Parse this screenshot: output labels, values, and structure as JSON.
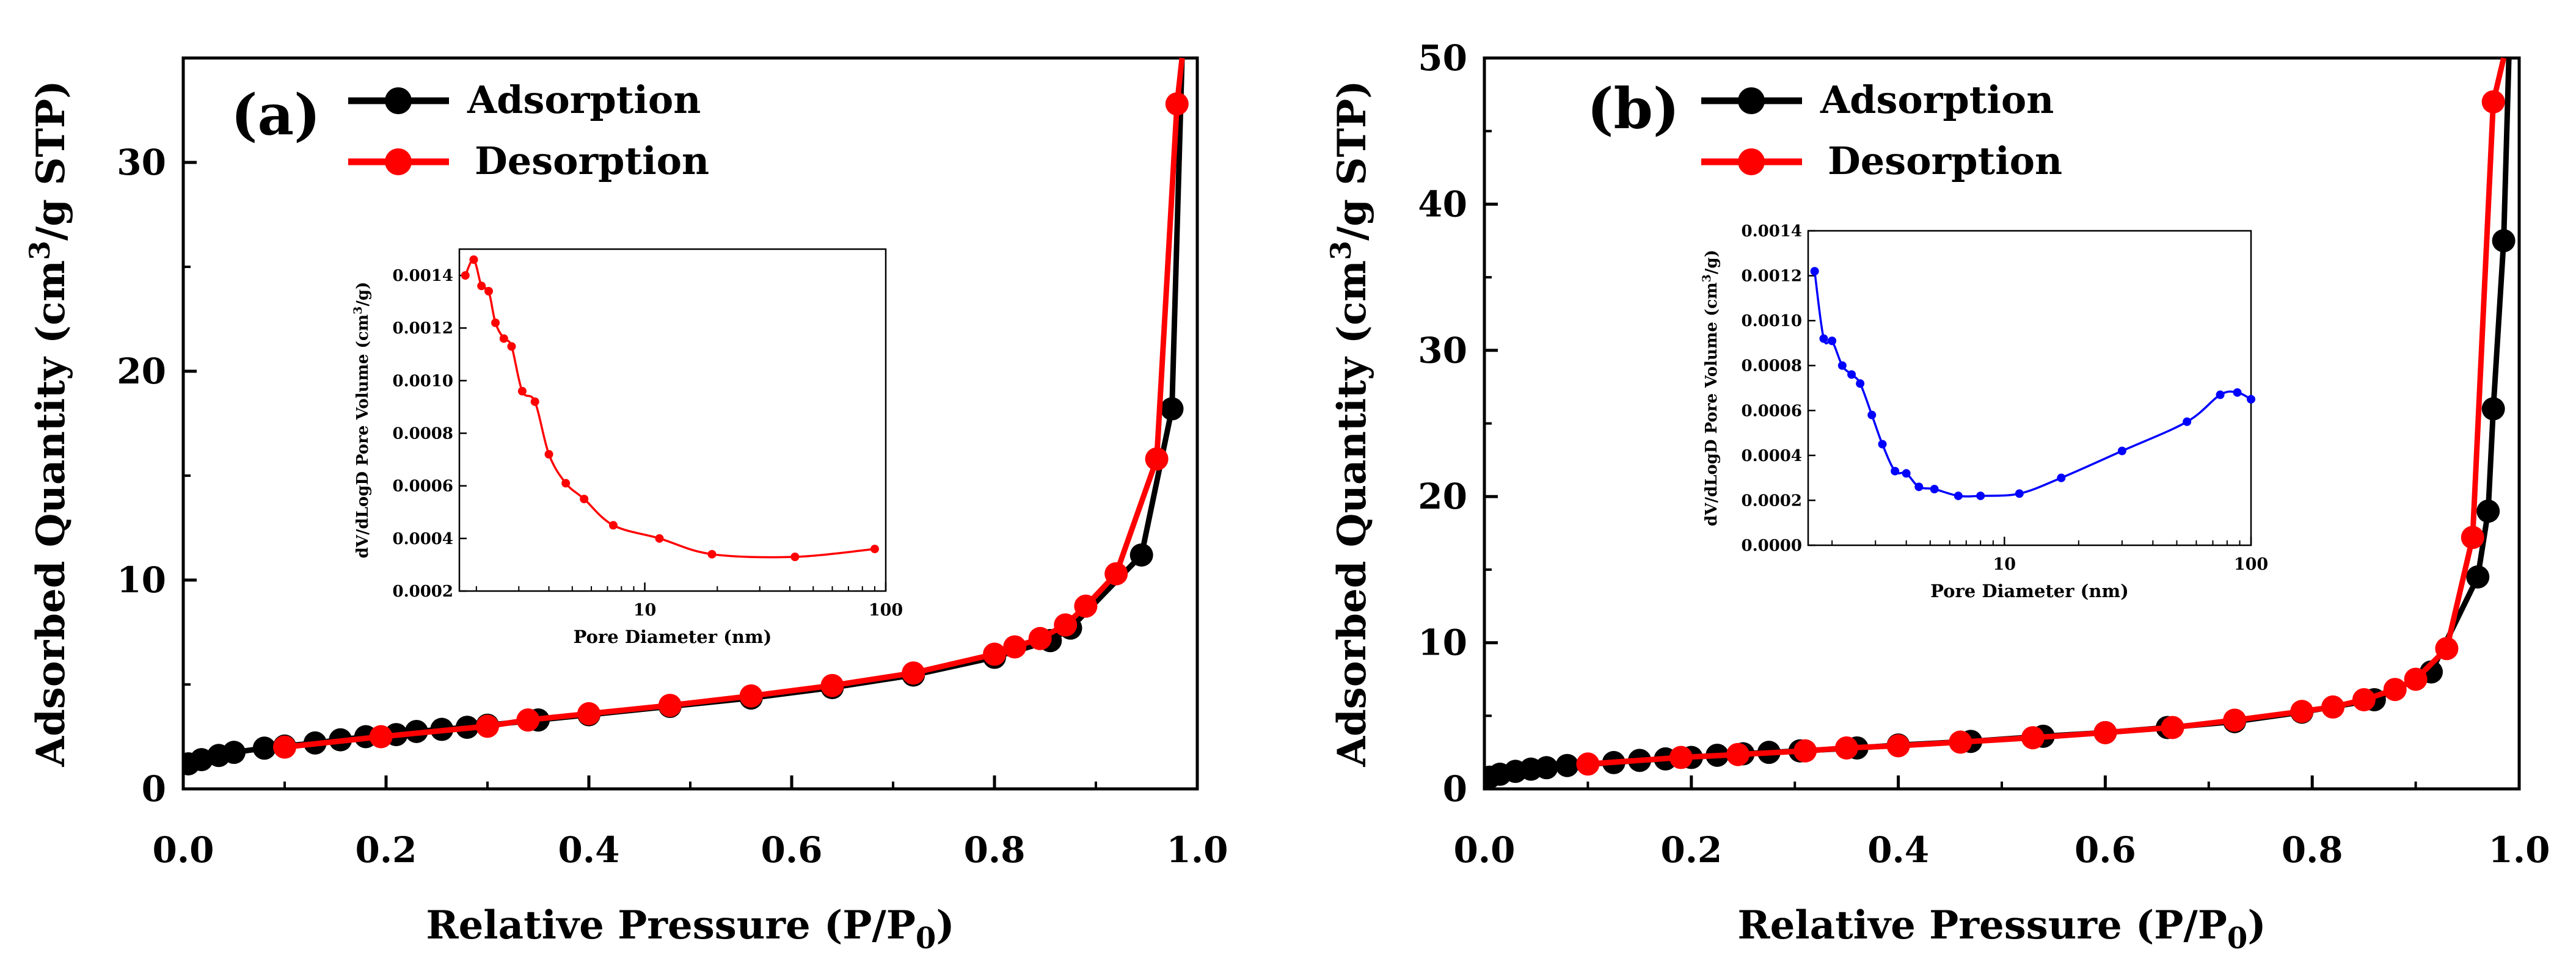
{
  "chart_data": [
    {
      "type": "line",
      "panel_label": "(a)",
      "xlabel": "Relative Pressure (P/P",
      "xlabel_sub": "0",
      "xlabel_end": ")",
      "ylabel": "Adsorbed Quantity (cm",
      "ylabel_sup": "3",
      "ylabel_end": "/g STP)",
      "xlim": [
        0.0,
        1.0
      ],
      "ylim": [
        0,
        35
      ],
      "xticks": [
        "0.0",
        "0.2",
        "0.4",
        "0.6",
        "0.8",
        "1.0"
      ],
      "yticks": [
        "0",
        "10",
        "20",
        "30"
      ],
      "legend": [
        "Adsorption",
        "Desorption"
      ],
      "legend_position": "top-left",
      "series": [
        {
          "name": "Adsorption",
          "color": "#000000",
          "x": [
            0.005,
            0.018,
            0.035,
            0.05,
            0.08,
            0.1,
            0.13,
            0.155,
            0.18,
            0.21,
            0.23,
            0.255,
            0.28,
            0.3,
            0.35,
            0.4,
            0.48,
            0.56,
            0.64,
            0.72,
            0.8,
            0.855,
            0.875,
            0.945,
            0.975,
            0.985
          ],
          "y": [
            1.2,
            1.4,
            1.6,
            1.75,
            1.95,
            2.05,
            2.2,
            2.35,
            2.5,
            2.6,
            2.75,
            2.85,
            2.95,
            3.05,
            3.3,
            3.55,
            3.95,
            4.35,
            4.85,
            5.45,
            6.3,
            7.1,
            7.7,
            11.2,
            18.2,
            35.0
          ]
        },
        {
          "name": "Desorption",
          "color": "#ff0000",
          "x": [
            0.1,
            0.195,
            0.3,
            0.34,
            0.4,
            0.48,
            0.56,
            0.64,
            0.72,
            0.8,
            0.82,
            0.845,
            0.87,
            0.89,
            0.92,
            0.96,
            0.98,
            0.985
          ],
          "y": [
            2.0,
            2.5,
            3.0,
            3.3,
            3.6,
            4.0,
            4.45,
            4.95,
            5.55,
            6.45,
            6.8,
            7.2,
            7.85,
            8.75,
            10.3,
            15.8,
            32.8,
            35.0
          ]
        }
      ],
      "inset": {
        "type": "line",
        "xlabel": "Pore Diameter (nm)",
        "ylabel": "dV/dLogD Pore Volume (cm",
        "ylabel_sup": "3",
        "ylabel_end": "/g)",
        "xscale": "log",
        "xlim": [
          1.7,
          100
        ],
        "ylim": [
          0.0002,
          0.0015
        ],
        "xticks": [
          "10",
          "100"
        ],
        "yticks": [
          "0.0002",
          "0.0004",
          "0.0006",
          "0.0008",
          "0.0010",
          "0.0012",
          "0.0014"
        ],
        "series": [
          {
            "color": "#ff0000",
            "x": [
              1.8,
              1.95,
              2.1,
              2.25,
              2.4,
              2.6,
              2.8,
              3.1,
              3.5,
              4.0,
              4.7,
              5.6,
              7.4,
              11.5,
              19.0,
              42.0,
              90.0
            ],
            "y": [
              0.0014,
              0.00146,
              0.00136,
              0.00134,
              0.00122,
              0.00116,
              0.00113,
              0.00096,
              0.00092,
              0.00072,
              0.00061,
              0.00055,
              0.00045,
              0.0004,
              0.00034,
              0.00033,
              0.00036
            ]
          }
        ]
      }
    },
    {
      "type": "line",
      "panel_label": "(b)",
      "xlabel": "Relative Pressure (P/P",
      "xlabel_sub": "0",
      "xlabel_end": ")",
      "ylabel": "Adsorbed Quantity (cm",
      "ylabel_sup": "3",
      "ylabel_end": "/g STP)",
      "xlim": [
        0.0,
        1.0
      ],
      "ylim": [
        0,
        50
      ],
      "xticks": [
        "0.0",
        "0.2",
        "0.4",
        "0.6",
        "0.8",
        "1.0"
      ],
      "yticks": [
        "0",
        "10",
        "20",
        "30",
        "40",
        "50"
      ],
      "legend": [
        "Adsorption",
        "Desorption"
      ],
      "legend_position": "top-left",
      "series": [
        {
          "name": "Adsorption",
          "color": "#000000",
          "x": [
            0.005,
            0.015,
            0.03,
            0.045,
            0.06,
            0.08,
            0.125,
            0.15,
            0.175,
            0.2,
            0.225,
            0.25,
            0.275,
            0.305,
            0.36,
            0.4,
            0.47,
            0.54,
            0.6,
            0.66,
            0.725,
            0.79,
            0.86,
            0.915,
            0.96,
            0.97,
            0.975,
            0.985,
            0.99
          ],
          "y": [
            0.8,
            1.0,
            1.2,
            1.35,
            1.45,
            1.6,
            1.8,
            1.95,
            2.05,
            2.15,
            2.3,
            2.4,
            2.5,
            2.6,
            2.8,
            3.0,
            3.25,
            3.6,
            3.85,
            4.2,
            4.6,
            5.25,
            6.1,
            8.0,
            14.5,
            19.0,
            26.0,
            37.5,
            50.0
          ]
        },
        {
          "name": "Desorption",
          "color": "#ff0000",
          "x": [
            0.1,
            0.19,
            0.245,
            0.31,
            0.35,
            0.4,
            0.46,
            0.53,
            0.6,
            0.665,
            0.725,
            0.79,
            0.82,
            0.85,
            0.88,
            0.9,
            0.93,
            0.955,
            0.975,
            0.985
          ],
          "y": [
            1.7,
            2.15,
            2.35,
            2.6,
            2.8,
            2.95,
            3.2,
            3.5,
            3.85,
            4.2,
            4.7,
            5.3,
            5.6,
            6.1,
            6.8,
            7.5,
            9.6,
            17.2,
            47.0,
            50.0
          ]
        }
      ],
      "inset": {
        "type": "line",
        "xlabel": "Pore Diameter (nm)",
        "ylabel": "dV/dLogD Pore Volume (cm",
        "ylabel_sup": "3",
        "ylabel_end": "/g)",
        "xscale": "log",
        "xlim": [
          1.6,
          100
        ],
        "ylim": [
          0.0,
          0.0014
        ],
        "xticks": [
          "10",
          "100"
        ],
        "yticks": [
          "0.0000",
          "0.0002",
          "0.0004",
          "0.0006",
          "0.0008",
          "0.0010",
          "0.0012",
          "0.0014"
        ],
        "series": [
          {
            "color": "#0000ff",
            "x": [
              1.7,
              1.85,
              2.0,
              2.2,
              2.4,
              2.6,
              2.9,
              3.2,
              3.6,
              4.0,
              4.5,
              5.2,
              6.5,
              8.0,
              11.5,
              17.0,
              30.0,
              55.0,
              75.0,
              88.0,
              100.0
            ],
            "y": [
              0.00122,
              0.00092,
              0.00091,
              0.0008,
              0.00076,
              0.00072,
              0.00058,
              0.00045,
              0.00033,
              0.00032,
              0.00026,
              0.00025,
              0.00022,
              0.00022,
              0.00023,
              0.0003,
              0.00042,
              0.00055,
              0.00067,
              0.00068,
              0.00065
            ]
          }
        ]
      }
    }
  ]
}
